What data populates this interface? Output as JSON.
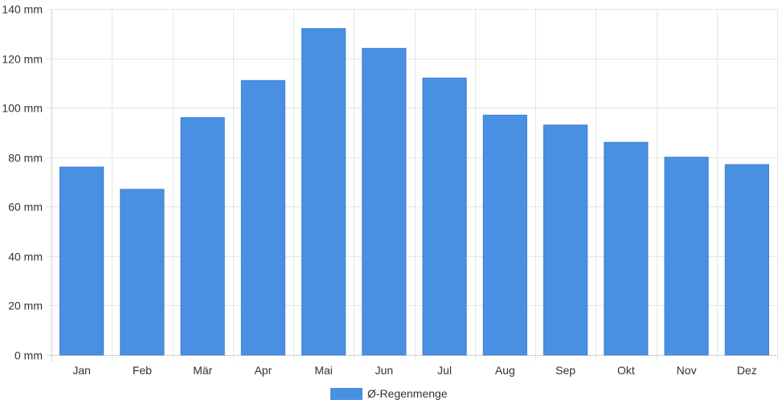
{
  "chart_data": {
    "type": "bar",
    "title": "",
    "xlabel": "",
    "ylabel": "",
    "categories": [
      "Jan",
      "Feb",
      "Mär",
      "Apr",
      "Mai",
      "Jun",
      "Jul",
      "Aug",
      "Sep",
      "Okt",
      "Nov",
      "Dez"
    ],
    "series": [
      {
        "name": "Ø-Regenmenge",
        "color": "#4a90e2",
        "values": [
          76,
          67,
          96,
          111,
          132,
          124,
          112,
          97,
          93,
          86,
          80,
          77
        ]
      }
    ],
    "ylim": [
      0,
      140
    ],
    "yticks": [
      0,
      20,
      40,
      60,
      80,
      100,
      120,
      140
    ],
    "ytick_labels": [
      "0 mm",
      "20 mm",
      "40 mm",
      "60 mm",
      "80 mm",
      "100 mm",
      "120 mm",
      "140 mm"
    ],
    "grid": true,
    "legend_position": "bottom"
  }
}
